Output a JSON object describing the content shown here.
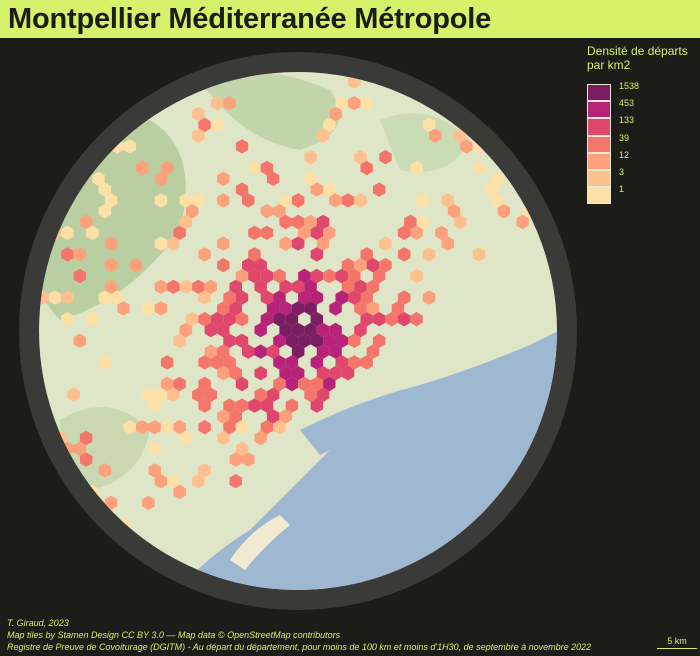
{
  "title": "Montpellier Méditerranée Métropole",
  "legend": {
    "title_line1": "Densité de départs",
    "title_line2": "par km2",
    "classes": [
      {
        "label": "1538",
        "color": "#7a1d62"
      },
      {
        "label": "453",
        "color": "#b62379"
      },
      {
        "label": "133",
        "color": "#e0476c"
      },
      {
        "label": "39",
        "color": "#f4766b"
      },
      {
        "label": "12",
        "color": "#fda07c"
      },
      {
        "label": "3",
        "color": "#fdc08e"
      },
      {
        "label": "1",
        "color": "#fde0a6"
      }
    ]
  },
  "credits": {
    "author": "T. Giraud, 2023",
    "tiles": "Map tiles by Stamen Design CC BY 3.0 — Map data © OpenStreetMap contributors",
    "source": "Registre de Preuve de Covoiturage (DGITM) - Au départ du département, pour moins de 100 km et moins d'1H30, de septembre à novembre 2022"
  },
  "scale_bar": {
    "label": "5 km"
  },
  "colors": {
    "background": "#1c1c19",
    "title_band": "#d4f26a",
    "frame_ring": "#3a3a38",
    "land": "#dfe5c7",
    "sea": "#9fb8d2"
  }
}
